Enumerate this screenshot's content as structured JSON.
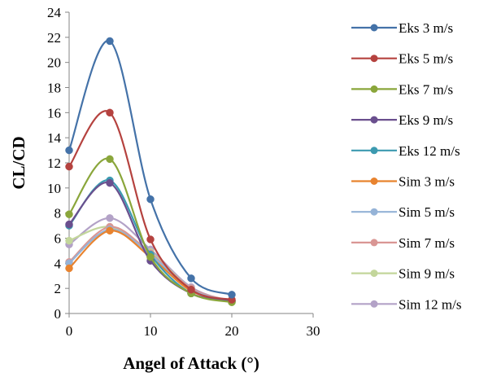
{
  "chart_data": {
    "type": "line",
    "xlabel": "Angel of Attack (°)",
    "ylabel": "CL/CD",
    "xlim": [
      0,
      30
    ],
    "ylim": [
      0,
      24
    ],
    "x_ticks": [
      "0",
      "10",
      "20",
      "30"
    ],
    "y_ticks": [
      "0",
      "2",
      "4",
      "6",
      "8",
      "10",
      "12",
      "14",
      "16",
      "18",
      "20",
      "22",
      "24"
    ],
    "grid": false,
    "legend_position": "right",
    "x": [
      0,
      5,
      10,
      15,
      20
    ],
    "series": [
      {
        "name": "Eks 3 m/s",
        "color": "#4472A8",
        "values": [
          13.0,
          21.7,
          9.1,
          2.8,
          1.5
        ]
      },
      {
        "name": "Eks 5 m/s",
        "color": "#B5423F",
        "values": [
          11.7,
          16.0,
          5.9,
          1.9,
          1.1
        ]
      },
      {
        "name": "Eks 7 m/s",
        "color": "#8AA63B",
        "values": [
          7.9,
          12.3,
          4.5,
          1.6,
          0.9
        ]
      },
      {
        "name": "Eks 9 m/s",
        "color": "#6A4F8E",
        "values": [
          7.1,
          10.4,
          4.2,
          1.6,
          1.0
        ]
      },
      {
        "name": "Eks 12 m/s",
        "color": "#3C9AB0",
        "values": [
          7.0,
          10.6,
          4.7,
          1.6,
          1.0
        ]
      },
      {
        "name": "Sim 3 m/s",
        "color": "#E8832F",
        "values": [
          3.6,
          6.6,
          4.5,
          1.8,
          1.0
        ]
      },
      {
        "name": "Sim 5 m/s",
        "color": "#95B3D7",
        "values": [
          4.0,
          6.7,
          4.7,
          1.9,
          1.0
        ]
      },
      {
        "name": "Sim 7 m/s",
        "color": "#D99694",
        "values": [
          4.1,
          6.9,
          4.8,
          2.0,
          1.0
        ]
      },
      {
        "name": "Sim 9 m/s",
        "color": "#C3D69B",
        "values": [
          5.8,
          6.9,
          4.9,
          2.0,
          0.9
        ]
      },
      {
        "name": "Sim 12 m/s",
        "color": "#B3A2C7",
        "values": [
          5.5,
          7.6,
          5.1,
          2.1,
          0.9
        ]
      }
    ]
  }
}
